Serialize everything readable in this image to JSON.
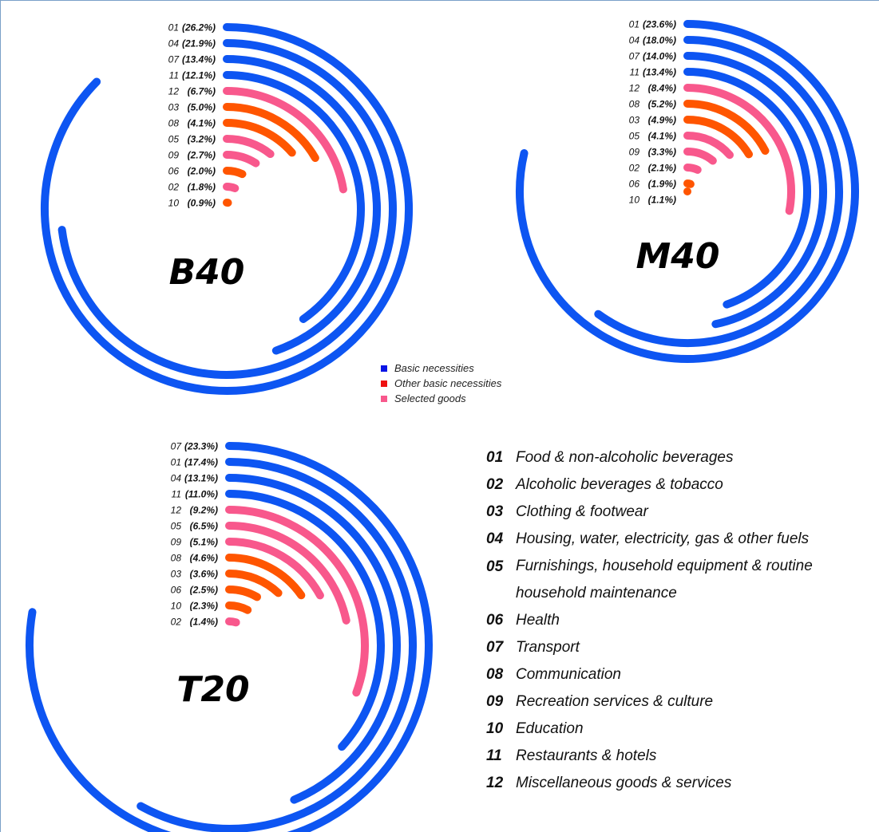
{
  "colors": {
    "basic_necessities": "#0d55f2",
    "other_basic_necessities": "#ff5500",
    "selected_goods": "#f8588c"
  },
  "series_legend": [
    {
      "label": "Basic necessities",
      "color": "#0a14e6"
    },
    {
      "label": "Other basic necessities",
      "color": "#ee1111"
    },
    {
      "label": "Selected goods",
      "color": "#f8588c"
    }
  ],
  "categories": [
    {
      "code": "01",
      "name": "Food & non-alcoholic beverages"
    },
    {
      "code": "02",
      "name": "Alcoholic beverages & tobacco"
    },
    {
      "code": "03",
      "name": "Clothing & footwear"
    },
    {
      "code": "04",
      "name": "Housing, water, electricity, gas & other fuels"
    },
    {
      "code": "05",
      "name": "Furnishings, household equipment & routine household maintenance"
    },
    {
      "code": "06",
      "name": "Health"
    },
    {
      "code": "07",
      "name": "Transport"
    },
    {
      "code": "08",
      "name": "Communication"
    },
    {
      "code": "09",
      "name": "Recreation services & culture"
    },
    {
      "code": "10",
      "name": "Education"
    },
    {
      "code": "11",
      "name": "Restaurants & hotels"
    },
    {
      "code": "12",
      "name": "Miscellaneous goods & services"
    }
  ],
  "chart_data": [
    {
      "type": "radial-bar",
      "title": "B40",
      "max_value": 30,
      "bars": [
        {
          "code": "01",
          "value": 26.2,
          "label": "(26.2%)",
          "group": "basic_necessities"
        },
        {
          "code": "04",
          "value": 21.9,
          "label": "(21.9%)",
          "group": "basic_necessities"
        },
        {
          "code": "07",
          "value": 13.4,
          "label": "(13.4%)",
          "group": "basic_necessities"
        },
        {
          "code": "11",
          "value": 12.1,
          "label": "(12.1%)",
          "group": "basic_necessities"
        },
        {
          "code": "12",
          "value": 6.7,
          "label": "(6.7%)",
          "group": "selected_goods"
        },
        {
          "code": "03",
          "value": 5.0,
          "label": "(5.0%)",
          "group": "other_basic_necessities"
        },
        {
          "code": "08",
          "value": 4.1,
          "label": "(4.1%)",
          "group": "other_basic_necessities"
        },
        {
          "code": "05",
          "value": 3.2,
          "label": "(3.2%)",
          "group": "selected_goods"
        },
        {
          "code": "09",
          "value": 2.7,
          "label": "(2.7%)",
          "group": "selected_goods"
        },
        {
          "code": "06",
          "value": 2.0,
          "label": "(2.0%)",
          "group": "other_basic_necessities"
        },
        {
          "code": "02",
          "value": 1.8,
          "label": "(1.8%)",
          "group": "selected_goods"
        },
        {
          "code": "10",
          "value": 0.9,
          "label": "(0.9%)",
          "group": "other_basic_necessities"
        }
      ]
    },
    {
      "type": "radial-bar",
      "title": "M40",
      "max_value": 30,
      "bars": [
        {
          "code": "01",
          "value": 23.6,
          "label": "(23.6%)",
          "group": "basic_necessities"
        },
        {
          "code": "04",
          "value": 18.0,
          "label": "(18.0%)",
          "group": "basic_necessities"
        },
        {
          "code": "07",
          "value": 14.0,
          "label": "(14.0%)",
          "group": "basic_necessities"
        },
        {
          "code": "11",
          "value": 13.4,
          "label": "(13.4%)",
          "group": "basic_necessities"
        },
        {
          "code": "12",
          "value": 8.4,
          "label": "(8.4%)",
          "group": "selected_goods"
        },
        {
          "code": "08",
          "value": 5.2,
          "label": "(5.2%)",
          "group": "other_basic_necessities"
        },
        {
          "code": "03",
          "value": 4.9,
          "label": "(4.9%)",
          "group": "other_basic_necessities"
        },
        {
          "code": "05",
          "value": 4.1,
          "label": "(4.1%)",
          "group": "selected_goods"
        },
        {
          "code": "09",
          "value": 3.3,
          "label": "(3.3%)",
          "group": "selected_goods"
        },
        {
          "code": "02",
          "value": 2.1,
          "label": "(2.1%)",
          "group": "selected_goods"
        },
        {
          "code": "06",
          "value": 1.9,
          "label": "(1.9%)",
          "group": "other_basic_necessities"
        },
        {
          "code": "10",
          "value": 1.1,
          "label": "(1.1%)",
          "group": "other_basic_necessities"
        }
      ]
    },
    {
      "type": "radial-bar",
      "title": "T20",
      "max_value": 30,
      "bars": [
        {
          "code": "07",
          "value": 23.3,
          "label": "(23.3%)",
          "group": "basic_necessities"
        },
        {
          "code": "01",
          "value": 17.4,
          "label": "(17.4%)",
          "group": "basic_necessities"
        },
        {
          "code": "04",
          "value": 13.1,
          "label": "(13.1%)",
          "group": "basic_necessities"
        },
        {
          "code": "11",
          "value": 11.0,
          "label": "(11.0%)",
          "group": "basic_necessities"
        },
        {
          "code": "12",
          "value": 9.2,
          "label": "(9.2%)",
          "group": "selected_goods"
        },
        {
          "code": "05",
          "value": 6.5,
          "label": "(6.5%)",
          "group": "selected_goods"
        },
        {
          "code": "09",
          "value": 5.1,
          "label": "(5.1%)",
          "group": "selected_goods"
        },
        {
          "code": "08",
          "value": 4.6,
          "label": "(4.6%)",
          "group": "other_basic_necessities"
        },
        {
          "code": "03",
          "value": 3.6,
          "label": "(3.6%)",
          "group": "other_basic_necessities"
        },
        {
          "code": "06",
          "value": 2.5,
          "label": "(2.5%)",
          "group": "other_basic_necessities"
        },
        {
          "code": "10",
          "value": 2.3,
          "label": "(2.3%)",
          "group": "other_basic_necessities"
        },
        {
          "code": "02",
          "value": 1.4,
          "label": "(1.4%)",
          "group": "selected_goods"
        }
      ]
    }
  ]
}
